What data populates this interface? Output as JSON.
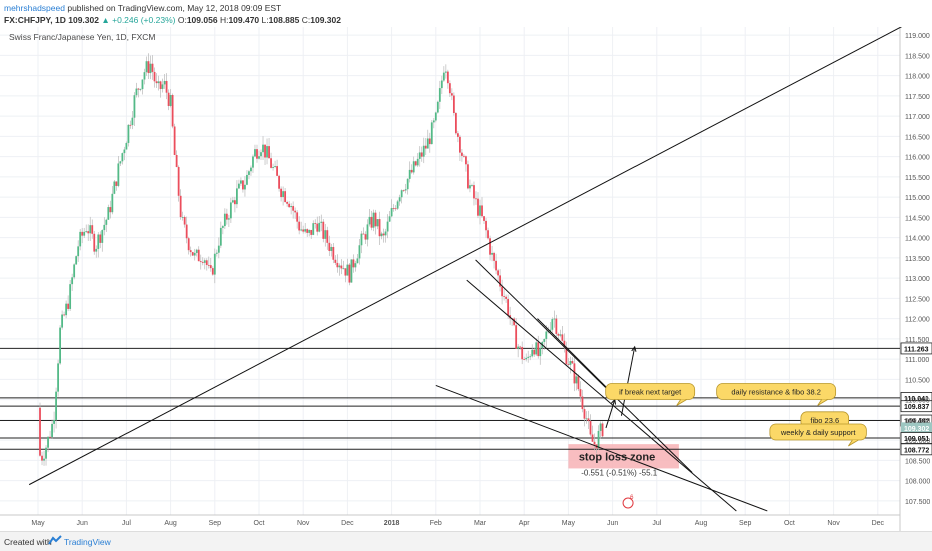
{
  "header": {
    "user": "mehrshadspeed",
    "published": "published on TradingView.com, May 12, 2018 09:09 EST",
    "symbol": "FX:CHFJPY, 1D",
    "last": "109.302",
    "change": "▲ +0.246 (+0.23%)",
    "o_label": "O:",
    "o": "109.056",
    "h_label": "H:",
    "h": "109.470",
    "l_label": "L:",
    "l": "108.885",
    "c_label": "C:",
    "c": "109.302"
  },
  "chart_data": {
    "type": "candlestick",
    "title": "Swiss Franc/Japanese Yen, 1D, FXCM",
    "x_ticks": [
      "May",
      "Jun",
      "Jul",
      "Aug",
      "Sep",
      "Oct",
      "Nov",
      "Dec",
      "2018",
      "Feb",
      "Mar",
      "Apr",
      "May",
      "Jun",
      "Jul",
      "Aug",
      "Sep",
      "Oct",
      "Nov",
      "Dec"
    ],
    "y_ticks": [
      "119.000",
      "118.500",
      "118.000",
      "117.500",
      "117.000",
      "116.500",
      "116.000",
      "115.500",
      "115.000",
      "114.500",
      "114.000",
      "113.500",
      "113.000",
      "112.500",
      "112.000",
      "111.500",
      "111.000",
      "110.500",
      "110.000",
      "109.500",
      "109.000",
      "108.500",
      "108.000",
      "107.500"
    ],
    "ylim": [
      107.15,
      119.2
    ],
    "x_range_months": [
      0,
      19.9
    ],
    "price_path": [
      [
        0.0,
        109.8
      ],
      [
        0.05,
        108.5
      ],
      [
        0.2,
        108.9
      ],
      [
        0.35,
        109.5
      ],
      [
        0.5,
        111.7
      ],
      [
        0.7,
        112.5
      ],
      [
        0.9,
        113.8
      ],
      [
        1.1,
        114.3
      ],
      [
        1.3,
        113.8
      ],
      [
        1.6,
        114.6
      ],
      [
        1.8,
        115.6
      ],
      [
        2.0,
        116.5
      ],
      [
        2.2,
        117.5
      ],
      [
        2.4,
        118.1
      ],
      [
        2.55,
        118.3
      ],
      [
        2.7,
        117.6
      ],
      [
        2.85,
        117.8
      ],
      [
        3.0,
        117.3
      ],
      [
        3.1,
        115.9
      ],
      [
        3.25,
        114.4
      ],
      [
        3.4,
        113.9
      ],
      [
        3.55,
        113.5
      ],
      [
        3.75,
        113.6
      ],
      [
        3.9,
        113.0
      ],
      [
        4.1,
        114.0
      ],
      [
        4.3,
        114.6
      ],
      [
        4.5,
        115.1
      ],
      [
        4.7,
        115.4
      ],
      [
        4.9,
        116.1
      ],
      [
        5.05,
        116.3
      ],
      [
        5.2,
        116.0
      ],
      [
        5.35,
        115.6
      ],
      [
        5.5,
        115.2
      ],
      [
        5.7,
        114.9
      ],
      [
        5.9,
        114.3
      ],
      [
        6.1,
        114.0
      ],
      [
        6.3,
        114.4
      ],
      [
        6.5,
        114.0
      ],
      [
        6.7,
        113.6
      ],
      [
        6.9,
        113.3
      ],
      [
        7.05,
        113.1
      ],
      [
        7.2,
        113.6
      ],
      [
        7.4,
        114.1
      ],
      [
        7.6,
        114.5
      ],
      [
        7.8,
        113.9
      ],
      [
        8.0,
        114.6
      ],
      [
        8.2,
        115.2
      ],
      [
        8.4,
        115.5
      ],
      [
        8.6,
        115.9
      ],
      [
        8.8,
        116.3
      ],
      [
        9.0,
        116.9
      ],
      [
        9.1,
        117.6
      ],
      [
        9.2,
        118.4
      ],
      [
        9.3,
        117.9
      ],
      [
        9.4,
        117.0
      ],
      [
        9.55,
        116.3
      ],
      [
        9.7,
        115.5
      ],
      [
        9.85,
        115.0
      ],
      [
        10.0,
        114.6
      ],
      [
        10.15,
        114.1
      ],
      [
        10.3,
        113.4
      ],
      [
        10.45,
        112.9
      ],
      [
        10.6,
        112.4
      ],
      [
        10.75,
        111.7
      ],
      [
        10.9,
        111.2
      ],
      [
        11.05,
        110.9
      ],
      [
        11.2,
        111.4
      ],
      [
        11.35,
        111.0
      ],
      [
        11.5,
        111.6
      ],
      [
        11.65,
        112.1
      ],
      [
        11.8,
        111.6
      ],
      [
        11.95,
        111.1
      ],
      [
        12.1,
        110.7
      ],
      [
        12.25,
        110.2
      ],
      [
        12.4,
        109.6
      ],
      [
        12.5,
        109.0
      ],
      [
        12.6,
        108.9
      ],
      [
        12.7,
        109.15
      ],
      [
        12.78,
        109.3
      ]
    ],
    "horizontal_levels": [
      {
        "price": 111.263,
        "label": "111.263",
        "style": "box"
      },
      {
        "price": 110.041,
        "label": "110.041",
        "style": "box"
      },
      {
        "price": 109.837,
        "label": "109.837",
        "style": "box"
      },
      {
        "price": 109.482,
        "label": "109.482",
        "style": "box"
      },
      {
        "price": 109.302,
        "label": "109.302",
        "style": "current"
      },
      {
        "price": 109.051,
        "label": "109.051",
        "style": "box"
      },
      {
        "price": 108.772,
        "label": "108.772",
        "style": "box"
      }
    ],
    "trend_lines": [
      {
        "from": [
          -0.2,
          107.9
        ],
        "to": [
          19.7,
          119.3
        ]
      },
      {
        "from": [
          9.9,
          113.45
        ],
        "to": [
          14.8,
          108.2
        ]
      },
      {
        "from": [
          9.7,
          112.95
        ],
        "to": [
          15.8,
          107.25
        ]
      },
      {
        "from": [
          9.0,
          110.35
        ],
        "to": [
          16.5,
          107.25
        ]
      },
      {
        "from": [
          11.3,
          112.0
        ],
        "to": [
          13.0,
          110.15
        ]
      }
    ],
    "annotations": [
      {
        "text": "if break next target",
        "x": 13.85,
        "y": 110.2,
        "kind": "callout"
      },
      {
        "text": "daily resistance & fibo 38.2",
        "x": 16.7,
        "y": 110.2,
        "kind": "callout"
      },
      {
        "text": "fibo 23.6",
        "x": 17.8,
        "y": 109.5,
        "kind": "callout"
      },
      {
        "text": "weekly & daily support",
        "x": 17.65,
        "y": 109.2,
        "kind": "callout"
      },
      {
        "text": "stop loss zone",
        "x": 13.1,
        "y": 108.6,
        "kind": "zone"
      },
      {
        "text": "-0.551 (-0.51%) -55.1",
        "x": 13.15,
        "y": 108.2,
        "kind": "measure"
      }
    ],
    "stop_zone": {
      "x0": 12.0,
      "x1": 14.5,
      "y0": 108.3,
      "y1": 108.9
    },
    "arrows": [
      {
        "from": [
          13.2,
          109.6
        ],
        "to": [
          13.5,
          111.3
        ]
      },
      {
        "from": [
          12.85,
          109.3
        ],
        "to": [
          13.05,
          110.0
        ]
      }
    ],
    "marker_label": "6"
  },
  "footer": {
    "created": "Created with",
    "brand": "TradingView"
  }
}
